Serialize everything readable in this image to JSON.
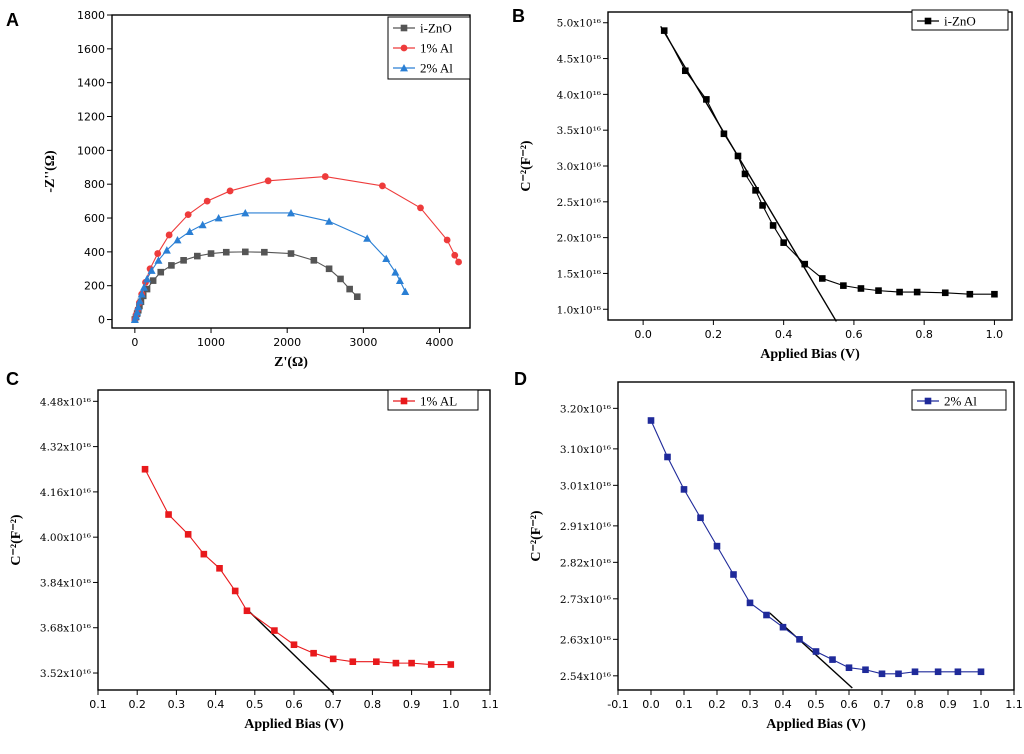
{
  "chart_data": [
    {
      "panel": "A",
      "type": "scatter",
      "xlabel": "Z'(Ω)",
      "ylabel": "-Z''(Ω)",
      "xlim": [
        -300,
        4400
      ],
      "ylim": [
        -50,
        1800
      ],
      "xticks": [
        "0",
        "1000",
        "2000",
        "3000",
        "4000"
      ],
      "yticks": [
        "0",
        "200",
        "400",
        "600",
        "800",
        "1000",
        "1200",
        "1400",
        "1600",
        "1800"
      ],
      "legend_position": "top-right",
      "series": [
        {
          "name": "i-ZnO",
          "color": "#555555",
          "marker": "square",
          "x": [
            0,
            15,
            30,
            45,
            60,
            80,
            110,
            160,
            240,
            340,
            480,
            640,
            820,
            1000,
            1200,
            1450,
            1700,
            2050,
            2350,
            2550,
            2700,
            2820,
            2920
          ],
          "y": [
            0,
            15,
            35,
            55,
            80,
            105,
            140,
            180,
            230,
            280,
            320,
            350,
            375,
            390,
            398,
            400,
            398,
            390,
            350,
            300,
            240,
            180,
            135
          ]
        },
        {
          "name": "1% Al",
          "color": "#ee3b3b",
          "marker": "circle",
          "x": [
            0,
            20,
            40,
            60,
            90,
            140,
            200,
            300,
            450,
            700,
            950,
            1250,
            1750,
            2500,
            3250,
            3750,
            4100,
            4200,
            4250
          ],
          "y": [
            0,
            30,
            60,
            100,
            150,
            220,
            300,
            390,
            500,
            620,
            700,
            760,
            820,
            845,
            790,
            660,
            470,
            380,
            340
          ]
        },
        {
          "name": "2% Al",
          "color": "#2a7fd4",
          "marker": "triangle",
          "x": [
            0,
            15,
            30,
            45,
            65,
            90,
            120,
            160,
            220,
            310,
            420,
            560,
            720,
            890,
            1100,
            1450,
            2050,
            2550,
            3050,
            3300,
            3420,
            3480,
            3550
          ],
          "y": [
            0,
            20,
            45,
            75,
            110,
            150,
            190,
            240,
            290,
            350,
            410,
            470,
            520,
            560,
            600,
            630,
            630,
            580,
            480,
            360,
            280,
            230,
            165
          ]
        }
      ]
    },
    {
      "panel": "B",
      "type": "line",
      "xlabel": "Applied Bias (V)",
      "ylabel": "C⁻²(F⁻²)",
      "xlim": [
        -0.1,
        1.05
      ],
      "ylim": [
        0.85,
        5.15
      ],
      "xticks": [
        "0.0",
        "0.2",
        "0.4",
        "0.6",
        "0.8",
        "1.0"
      ],
      "yticks": [
        "1.0x10¹⁶",
        "1.5x10¹⁶",
        "2.0x10¹⁶",
        "2.5x10¹⁶",
        "3.0x10¹⁶",
        "3.5x10¹⁶",
        "4.0x10¹⁶",
        "4.5x10¹⁶",
        "5.0x10¹⁶"
      ],
      "legend_position": "top-right",
      "fit_line": {
        "x1": 0.05,
        "y1": 4.95,
        "x2": 0.55,
        "y2": 0.83
      },
      "series": [
        {
          "name": "i-ZnO",
          "color": "#000000",
          "marker": "square",
          "x": [
            0.06,
            0.12,
            0.18,
            0.23,
            0.27,
            0.29,
            0.32,
            0.34,
            0.37,
            0.4,
            0.46,
            0.51,
            0.57,
            0.62,
            0.67,
            0.73,
            0.78,
            0.86,
            0.93,
            1.0
          ],
          "y": [
            4.89,
            4.33,
            3.93,
            3.45,
            3.14,
            2.89,
            2.66,
            2.45,
            2.17,
            1.93,
            1.63,
            1.43,
            1.33,
            1.29,
            1.26,
            1.24,
            1.24,
            1.23,
            1.21,
            1.21
          ]
        }
      ]
    },
    {
      "panel": "C",
      "type": "line",
      "xlabel": "Applied Bias (V)",
      "ylabel": "C⁻²(F⁻²)",
      "xlim": [
        0.1,
        1.1
      ],
      "ylim": [
        3.46,
        4.52
      ],
      "xticks": [
        "0.1",
        "0.2",
        "0.3",
        "0.4",
        "0.5",
        "0.6",
        "0.7",
        "0.8",
        "0.9",
        "1.0",
        "1.1"
      ],
      "yticks": [
        "3.52x10¹⁶",
        "3.68x10¹⁶",
        "3.84x10¹⁶",
        "4.00x10¹⁶",
        "4.16x10¹⁶",
        "4.32x10¹⁶",
        "4.48x10¹⁶"
      ],
      "legend_position": "top-right",
      "fit_line": {
        "x1": 0.48,
        "y1": 3.745,
        "x2": 0.7,
        "y2": 3.45
      },
      "series": [
        {
          "name": "1% AL",
          "color": "#e8191c",
          "marker": "square",
          "x": [
            0.22,
            0.28,
            0.33,
            0.37,
            0.41,
            0.45,
            0.48,
            0.55,
            0.6,
            0.65,
            0.7,
            0.75,
            0.81,
            0.86,
            0.9,
            0.95,
            1.0
          ],
          "y": [
            4.24,
            4.08,
            4.01,
            3.94,
            3.89,
            3.81,
            3.74,
            3.67,
            3.62,
            3.59,
            3.57,
            3.56,
            3.56,
            3.555,
            3.555,
            3.55,
            3.55
          ]
        }
      ]
    },
    {
      "panel": "D",
      "type": "line",
      "xlabel": "Applied Bias (V)",
      "ylabel": "C⁻²(F⁻²)",
      "xlim": [
        -0.1,
        1.1
      ],
      "ylim": [
        2.505,
        3.265
      ],
      "xticks": [
        "-0.1",
        "0.0",
        "0.1",
        "0.2",
        "0.3",
        "0.4",
        "0.5",
        "0.6",
        "0.7",
        "0.8",
        "0.9",
        "1.0",
        "1.1"
      ],
      "yticks": [
        "2.54x10¹⁶",
        "2.63x10¹⁶",
        "2.73x10¹⁶",
        "2.82x10¹⁶",
        "2.91x10¹⁶",
        "3.01x10¹⁶",
        "3.10x10¹⁶",
        "3.20x10¹⁶"
      ],
      "legend_position": "top-right",
      "fit_line": {
        "x1": 0.36,
        "y1": 2.695,
        "x2": 0.61,
        "y2": 2.51
      },
      "series": [
        {
          "name": "2% Al",
          "color": "#1f2a9a",
          "marker": "square",
          "x": [
            0.0,
            0.05,
            0.1,
            0.15,
            0.2,
            0.25,
            0.3,
            0.35,
            0.4,
            0.45,
            0.5,
            0.55,
            0.6,
            0.65,
            0.7,
            0.75,
            0.8,
            0.87,
            0.93,
            1.0
          ],
          "y": [
            3.17,
            3.08,
            3.0,
            2.93,
            2.86,
            2.79,
            2.72,
            2.69,
            2.66,
            2.63,
            2.6,
            2.58,
            2.56,
            2.555,
            2.545,
            2.545,
            2.55,
            2.55,
            2.55,
            2.55
          ]
        }
      ]
    }
  ]
}
